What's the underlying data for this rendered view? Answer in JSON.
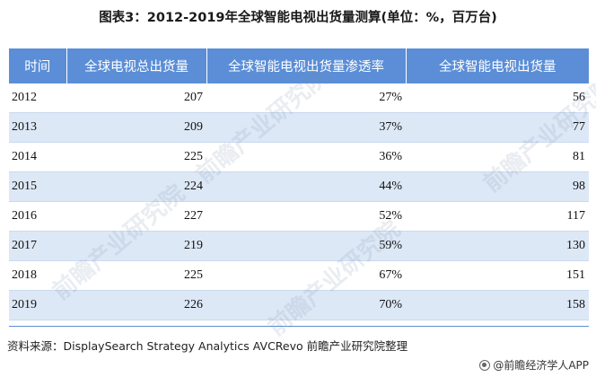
{
  "title": "图表3：2012-2019年全球智能电视出货量测算(单位：%，百万台)",
  "table": {
    "headers": [
      "时间",
      "全球电视总出货量",
      "全球智能电视出货量渗透率",
      "全球智能电视出货量"
    ],
    "rows": [
      [
        "2012",
        "207",
        "27%",
        "56"
      ],
      [
        "2013",
        "209",
        "37%",
        "77"
      ],
      [
        "2014",
        "225",
        "36%",
        "81"
      ],
      [
        "2015",
        "224",
        "44%",
        "98"
      ],
      [
        "2016",
        "227",
        "52%",
        "117"
      ],
      [
        "2017",
        "219",
        "59%",
        "130"
      ],
      [
        "2018",
        "225",
        "67%",
        "151"
      ],
      [
        "2019",
        "226",
        "70%",
        "158"
      ]
    ]
  },
  "source": "资料来源：DisplaySearch Strategy Analytics AVCRevo 前瞻产业研究院整理",
  "brand": "@前瞻经济学人APP",
  "watermark": "前瞻产业研究院",
  "colors": {
    "header_bg": "#5b8ed6",
    "alt_row_bg": "#dde8f6"
  }
}
